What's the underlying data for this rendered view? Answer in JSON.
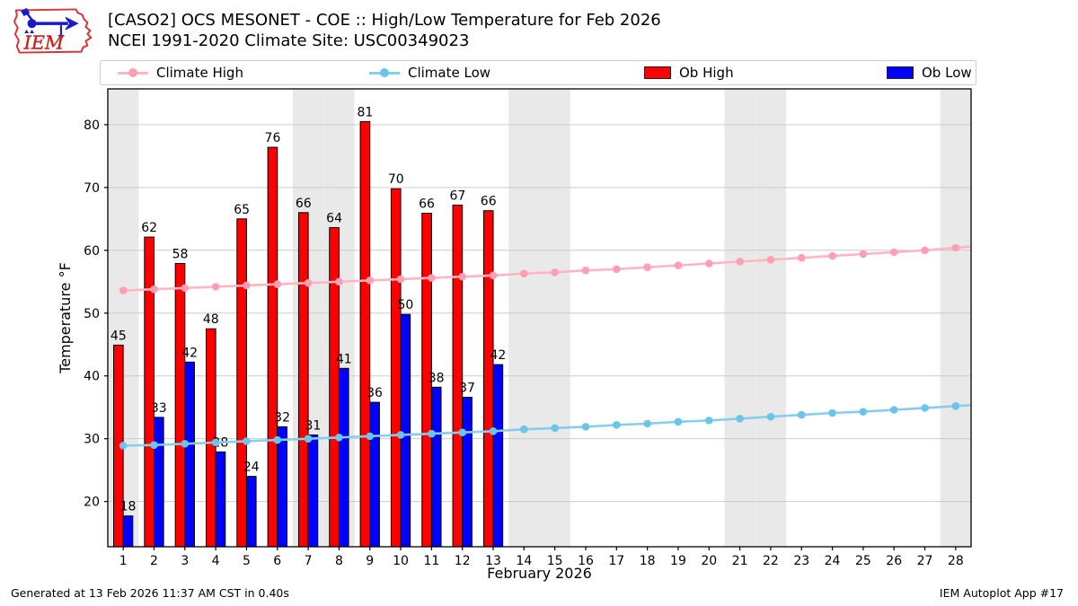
{
  "header": {
    "title_line1": "[CASO2] OCS MESONET - COE :: High/Low Temperature for Feb 2026",
    "title_line2": "NCEI 1991-2020 Climate Site: USC00349023",
    "logo_text": "IEM"
  },
  "footer": {
    "left": "Generated at 13 Feb 2026 11:37 AM CST in 0.40s",
    "right": "IEM Autoplot App #17"
  },
  "chart_data": {
    "type": "bar",
    "xlabel": "February 2026",
    "ylabel": "Temperature °F",
    "xlim": [
      0.5,
      28.5
    ],
    "ylim": [
      12.8,
      85.7
    ],
    "xticks": [
      1,
      2,
      3,
      4,
      5,
      6,
      7,
      8,
      9,
      10,
      11,
      12,
      13,
      14,
      15,
      16,
      17,
      18,
      19,
      20,
      21,
      22,
      23,
      24,
      25,
      26,
      27,
      28
    ],
    "yticks": [
      20,
      30,
      40,
      50,
      60,
      70,
      80
    ],
    "grid": "horizontal",
    "legend_position": "top",
    "weekend_shaded_days": [
      1,
      7,
      8,
      14,
      15,
      21,
      22,
      28
    ],
    "colors": {
      "weekend_band": "#e9e9e9",
      "grid": "#cccccc",
      "frame": "#000000",
      "ob_high": "#ff0000",
      "ob_low": "#0000ff",
      "climate_high": "#ffb6c1",
      "climate_low": "#87ceeb"
    },
    "series": [
      {
        "name": "Climate High",
        "type": "line",
        "color": "#ffb6c1",
        "marker_color": "#ff9fb3",
        "x": [
          1,
          2,
          3,
          4,
          5,
          6,
          7,
          8,
          9,
          10,
          11,
          12,
          13,
          14,
          15,
          16,
          17,
          18,
          19,
          20,
          21,
          22,
          23,
          24,
          25,
          26,
          27,
          28
        ],
        "values": [
          53.6,
          53.8,
          54.0,
          54.2,
          54.4,
          54.6,
          54.8,
          55.0,
          55.2,
          55.4,
          55.6,
          55.8,
          56.0,
          56.3,
          56.5,
          56.8,
          57.0,
          57.3,
          57.6,
          57.9,
          58.2,
          58.5,
          58.8,
          59.1,
          59.4,
          59.7,
          60.0,
          60.4
        ]
      },
      {
        "name": "Climate Low",
        "type": "line",
        "color": "#87ceeb",
        "marker_color": "#6cc4e8",
        "x": [
          1,
          2,
          3,
          4,
          5,
          6,
          7,
          8,
          9,
          10,
          11,
          12,
          13,
          14,
          15,
          16,
          17,
          18,
          19,
          20,
          21,
          22,
          23,
          24,
          25,
          26,
          27,
          28
        ],
        "values": [
          28.9,
          29.0,
          29.2,
          29.4,
          29.6,
          29.8,
          30.0,
          30.2,
          30.4,
          30.6,
          30.8,
          31.0,
          31.2,
          31.5,
          31.7,
          31.9,
          32.2,
          32.4,
          32.7,
          32.9,
          33.2,
          33.5,
          33.8,
          34.1,
          34.3,
          34.6,
          34.9,
          35.2
        ]
      },
      {
        "name": "Ob High",
        "type": "bar",
        "color": "#ff0000",
        "x": [
          1,
          2,
          3,
          4,
          5,
          6,
          7,
          8,
          9,
          10,
          11,
          12,
          13
        ],
        "values": [
          44.9,
          62.1,
          57.9,
          47.5,
          65.0,
          76.4,
          66.0,
          63.6,
          80.5,
          69.8,
          65.9,
          67.2,
          66.3
        ],
        "labels": [
          "45",
          "62",
          "58",
          "48",
          "65",
          "76",
          "66",
          "64",
          "81",
          "70",
          "66",
          "67",
          "66"
        ]
      },
      {
        "name": "Ob Low",
        "type": "bar",
        "color": "#0000ff",
        "x": [
          1,
          2,
          3,
          4,
          5,
          6,
          7,
          8,
          9,
          10,
          11,
          12,
          13
        ],
        "values": [
          17.7,
          33.4,
          42.2,
          27.9,
          24.0,
          31.9,
          30.6,
          41.2,
          35.8,
          49.8,
          38.2,
          36.6,
          41.8
        ],
        "labels": [
          "18",
          "33",
          "42",
          "28",
          "24",
          "32",
          "31",
          "41",
          "36",
          "50",
          "38",
          "37",
          "42"
        ]
      }
    ]
  }
}
